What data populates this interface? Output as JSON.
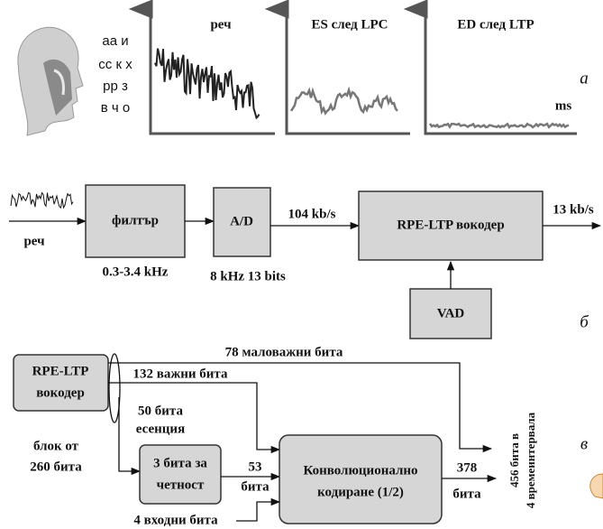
{
  "part_a": {
    "phonemes": [
      "аа и",
      "сс к х",
      "рр з",
      "в ч о"
    ],
    "panels": [
      "реч",
      "ES след LPC",
      "ED след LTP"
    ],
    "axis_unit": "ms",
    "label": "а"
  },
  "part_b": {
    "input": "реч",
    "filter": "филтър",
    "filter_band": "0.3-3.4 kHz",
    "adc": "A/D",
    "adc_spec": "8 kHz 13 bits",
    "rate_in": "104 kb/s",
    "vocoder": "RPE-LTP вокодер",
    "rate_out": "13 kb/s",
    "vad": "VAD",
    "label": "б"
  },
  "part_c": {
    "vocoder": [
      "RPE-LTP",
      "вокодер"
    ],
    "minor_bits": "78 маловажни бита",
    "major_bits": "132 важни бита",
    "essence_bits": [
      "50 бита",
      "есенция"
    ],
    "block": [
      "блок от",
      "260 бита"
    ],
    "parity": [
      "3 бита за",
      "четност"
    ],
    "parity_out": [
      "53",
      "бита"
    ],
    "coder": [
      "Конволюционално",
      "кодиране (1/2)"
    ],
    "coder_out": [
      "378",
      "бита"
    ],
    "output": [
      "456 бита в",
      "4 времеинтервала"
    ],
    "tail_bits": "4 входни бита",
    "label": "в"
  }
}
